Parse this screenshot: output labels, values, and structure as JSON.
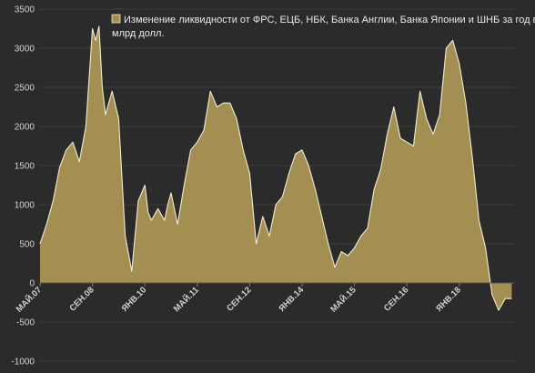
{
  "chart_data": {
    "type": "area",
    "title": "",
    "xlabel": "",
    "ylabel": "",
    "ylim": [
      -1000,
      3500
    ],
    "yticks": [
      -1000,
      -500,
      0,
      500,
      1000,
      1500,
      2000,
      2500,
      3000,
      3500
    ],
    "xlim": [
      "2007-05",
      "2019-06"
    ],
    "xticks": [
      "МАЙ.07",
      "СЕН.08",
      "ЯНВ.10",
      "МАЙ.11",
      "СЕН.12",
      "ЯНВ.14",
      "МАЙ.15",
      "СЕН.16",
      "ЯНВ.18"
    ],
    "xtick_dates": [
      "2007-05",
      "2008-09",
      "2010-01",
      "2011-05",
      "2012-09",
      "2014-01",
      "2015-05",
      "2016-09",
      "2018-01"
    ],
    "grid": true,
    "legend_position": "top",
    "colors": {
      "fill": "#a38f52",
      "line": "#f2ecd0",
      "grid": "#3d3d3d",
      "background": "#2b2b2b"
    },
    "series": [
      {
        "name": "Изменение ликвидности от ФРС, ЕЦБ, НБК, Банка Англии, Банка Японии и ШНБ за год в млрд долл.",
        "x": [
          "2007-05",
          "2007-07",
          "2007-09",
          "2007-11",
          "2008-01",
          "2008-03",
          "2008-05",
          "2008-07",
          "2008-09",
          "2008-10",
          "2008-11",
          "2008-12",
          "2009-01",
          "2009-02",
          "2009-03",
          "2009-05",
          "2009-07",
          "2009-09",
          "2009-11",
          "2010-01",
          "2010-02",
          "2010-03",
          "2010-05",
          "2010-07",
          "2010-08",
          "2010-09",
          "2010-11",
          "2011-01",
          "2011-03",
          "2011-05",
          "2011-07",
          "2011-09",
          "2011-11",
          "2012-01",
          "2012-03",
          "2012-05",
          "2012-07",
          "2012-09",
          "2012-11",
          "2013-01",
          "2013-03",
          "2013-05",
          "2013-07",
          "2013-09",
          "2013-11",
          "2014-01",
          "2014-03",
          "2014-05",
          "2014-07",
          "2014-09",
          "2014-11",
          "2015-01",
          "2015-03",
          "2015-05",
          "2015-07",
          "2015-09",
          "2015-11",
          "2016-01",
          "2016-03",
          "2016-05",
          "2016-07",
          "2016-09",
          "2016-11",
          "2017-01",
          "2017-03",
          "2017-05",
          "2017-07",
          "2017-09",
          "2017-11",
          "2018-01",
          "2018-03",
          "2018-05",
          "2018-07",
          "2018-09",
          "2018-11",
          "2019-01",
          "2019-03",
          "2019-05"
        ],
        "values": [
          500,
          750,
          1050,
          1480,
          1700,
          1800,
          1550,
          2000,
          3250,
          3100,
          3280,
          2500,
          2150,
          2300,
          2450,
          2100,
          600,
          150,
          1050,
          1250,
          900,
          800,
          950,
          800,
          1000,
          1150,
          750,
          1250,
          1700,
          1800,
          1950,
          2450,
          2250,
          2300,
          2300,
          2100,
          1700,
          1400,
          500,
          850,
          600,
          1000,
          1100,
          1400,
          1650,
          1700,
          1500,
          1200,
          850,
          500,
          200,
          400,
          350,
          450,
          600,
          700,
          1200,
          1450,
          1900,
          2250,
          1850,
          1800,
          1750,
          2450,
          2100,
          1900,
          2150,
          3000,
          3100,
          2800,
          2300,
          1600,
          800,
          450,
          -150,
          -350,
          -200,
          -200
        ]
      }
    ]
  }
}
